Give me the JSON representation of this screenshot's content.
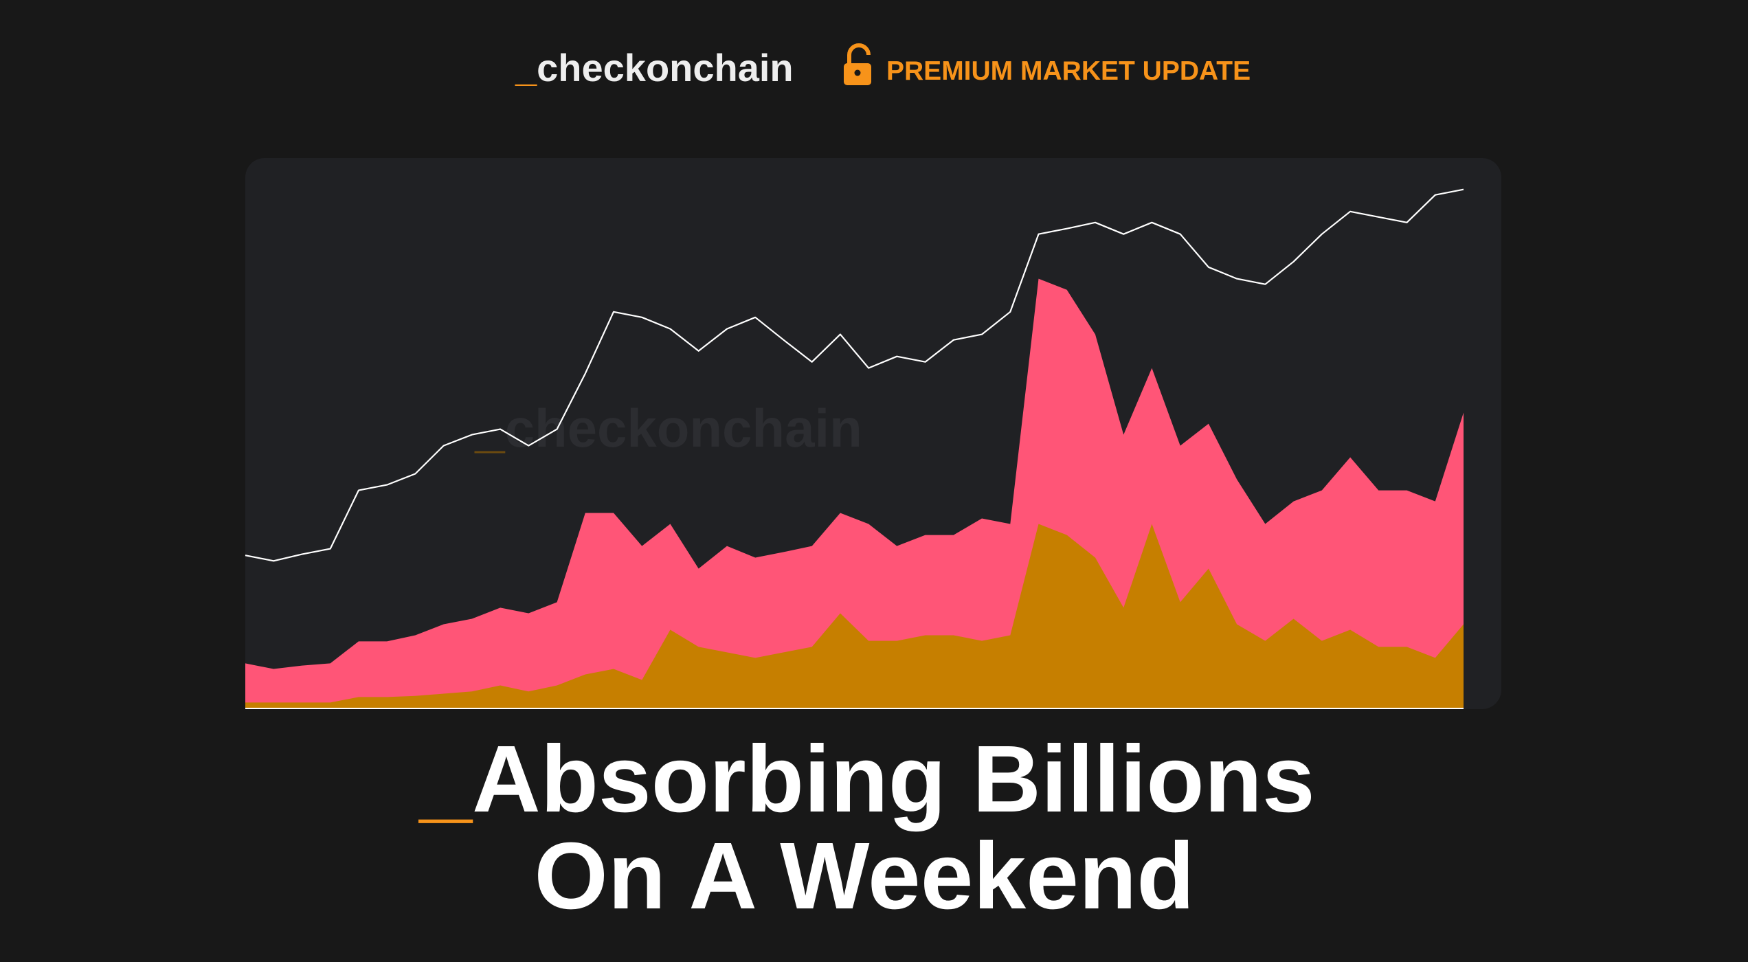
{
  "header": {
    "brand": {
      "prefix": "_",
      "name": "checkonchain"
    },
    "badge": "PREMIUM MARKET UPDATE"
  },
  "chart_data": {
    "type": "area",
    "watermark": {
      "prefix": "_",
      "name": "checkonchain"
    },
    "ylim": [
      0,
      100
    ],
    "series": [
      {
        "type": "area",
        "color": "#ff5577",
        "values": [
          8.3,
          7.3,
          7.9,
          8.3,
          12.3,
          12.3,
          13.4,
          15.4,
          16.4,
          18.4,
          17.4,
          19.4,
          35.6,
          35.6,
          29.6,
          33.6,
          25.5,
          29.6,
          27.5,
          28.5,
          29.6,
          35.6,
          33.6,
          29.6,
          31.6,
          31.6,
          34.6,
          33.6,
          78.1,
          76.1,
          68.0,
          49.8,
          61.9,
          47.8,
          51.8,
          41.7,
          33.6,
          37.7,
          39.7,
          45.7,
          39.7,
          39.7,
          37.7,
          53.8
        ]
      },
      {
        "type": "area",
        "color": "#c67f00",
        "values": [
          1.2,
          1.2,
          1.2,
          1.2,
          2.2,
          2.2,
          2.4,
          2.8,
          3.2,
          4.3,
          3.2,
          4.3,
          6.3,
          7.3,
          5.3,
          14.4,
          11.3,
          10.3,
          9.3,
          10.3,
          11.3,
          17.4,
          12.4,
          12.4,
          13.4,
          13.4,
          12.4,
          13.4,
          33.6,
          31.6,
          27.5,
          18.4,
          33.6,
          19.4,
          25.5,
          15.4,
          12.4,
          16.4,
          12.4,
          14.4,
          11.3,
          11.3,
          9.3,
          15.4
        ]
      },
      {
        "type": "line",
        "color": "#ffffff",
        "values": [
          27.9,
          26.9,
          28.1,
          29.1,
          39.7,
          40.7,
          42.7,
          47.8,
          49.8,
          50.8,
          47.8,
          50.8,
          60.9,
          72.1,
          71.1,
          69.0,
          65.0,
          69.0,
          71.1,
          67.0,
          63.0,
          68.0,
          61.9,
          64.0,
          63.0,
          67.0,
          68.0,
          72.1,
          86.2,
          87.2,
          88.3,
          86.2,
          88.3,
          86.2,
          80.2,
          78.1,
          77.1,
          81.2,
          86.2,
          90.3,
          89.3,
          88.3,
          93.3,
          94.3
        ]
      }
    ]
  },
  "title": {
    "prefix": "_",
    "lines": [
      "Absorbing Billions",
      "On A Weekend"
    ]
  }
}
